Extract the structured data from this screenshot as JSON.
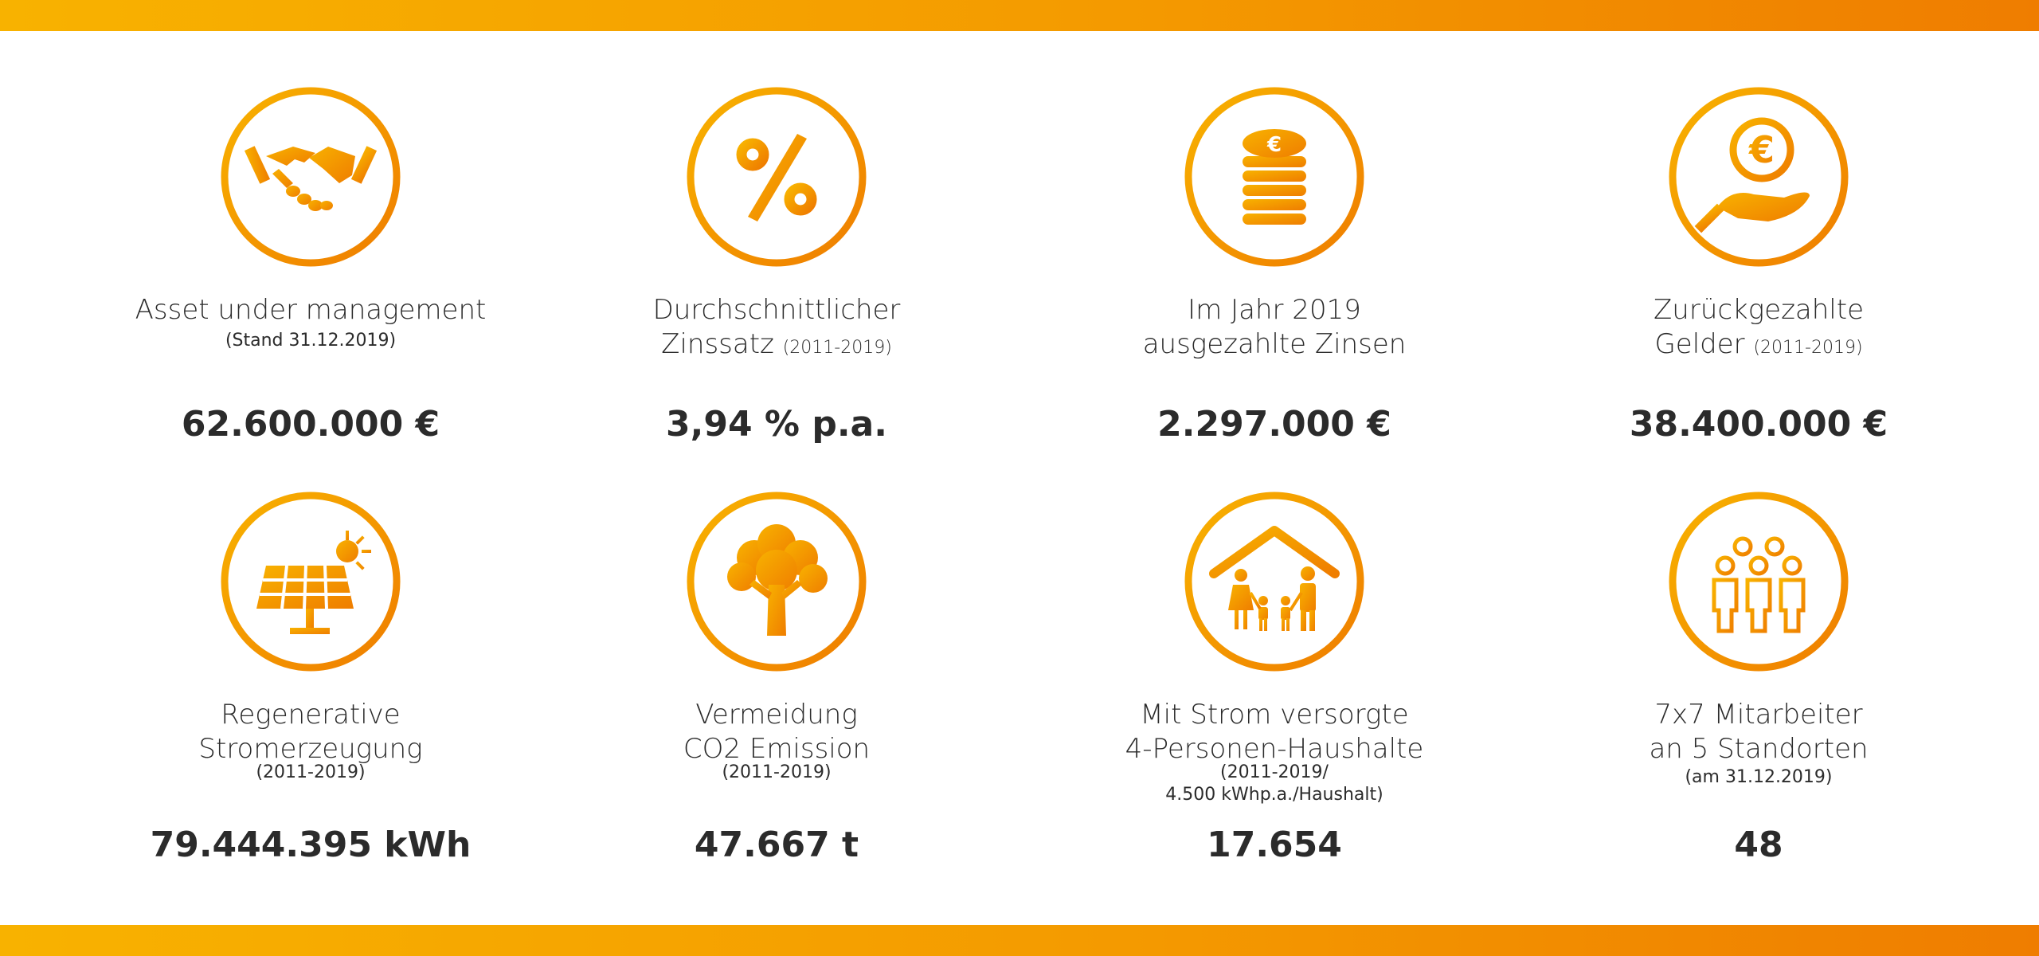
{
  "brand": {
    "gradient_start": "#f8b200",
    "gradient_end": "#ef7d00",
    "text": "#2b2b2b"
  },
  "stats_row_1": [
    {
      "icon": "handshake-icon",
      "label_line1": "Asset under management",
      "label_line2": "",
      "label_small": "",
      "sub": "(Stand 31.12.2019)",
      "sub2": "",
      "value": "62.600.000 €"
    },
    {
      "icon": "percent-icon",
      "label_line1": "Durchschnittlicher",
      "label_line2": "Zinssatz",
      "label_small": "(2011-2019)",
      "sub": "",
      "sub2": "",
      "value": "3,94 % p.a."
    },
    {
      "icon": "coin-stack-icon",
      "label_line1": "Im Jahr 2019",
      "label_line2": "ausgezahlte Zinsen",
      "label_small": "",
      "sub": "",
      "sub2": "",
      "value": "2.297.000 €"
    },
    {
      "icon": "hand-euro-icon",
      "label_line1": "Zurückgezahlte",
      "label_line2": "Gelder",
      "label_small": "(2011-2019)",
      "sub": "",
      "sub2": "",
      "value": "38.400.000 €"
    }
  ],
  "stats_row_2": [
    {
      "icon": "solar-panel-icon",
      "label_line1": "Regenerative",
      "label_line2": "Stromerzeugung",
      "label_small": "",
      "sub": "(2011-2019)",
      "sub2": "",
      "value": "79.444.395 kWh"
    },
    {
      "icon": "tree-icon",
      "label_line1": "Vermeidung",
      "label_line2": "CO2 Emission",
      "label_small": "",
      "sub": "(2011-2019)",
      "sub2": "",
      "value": "47.667 t"
    },
    {
      "icon": "family-house-icon",
      "label_line1": "Mit Strom versorgte",
      "label_line2": "4-Personen-Haushalte",
      "label_small": "",
      "sub": "(2011-2019/",
      "sub2": "4.500 kWhp.a./Haushalt)",
      "value": "17.654"
    },
    {
      "icon": "team-icon",
      "label_line1": "7x7 Mitarbeiter",
      "label_line2": "an 5 Standorten",
      "label_small": "",
      "sub": "(am 31.12.2019)",
      "sub2": "",
      "value": "48"
    }
  ]
}
